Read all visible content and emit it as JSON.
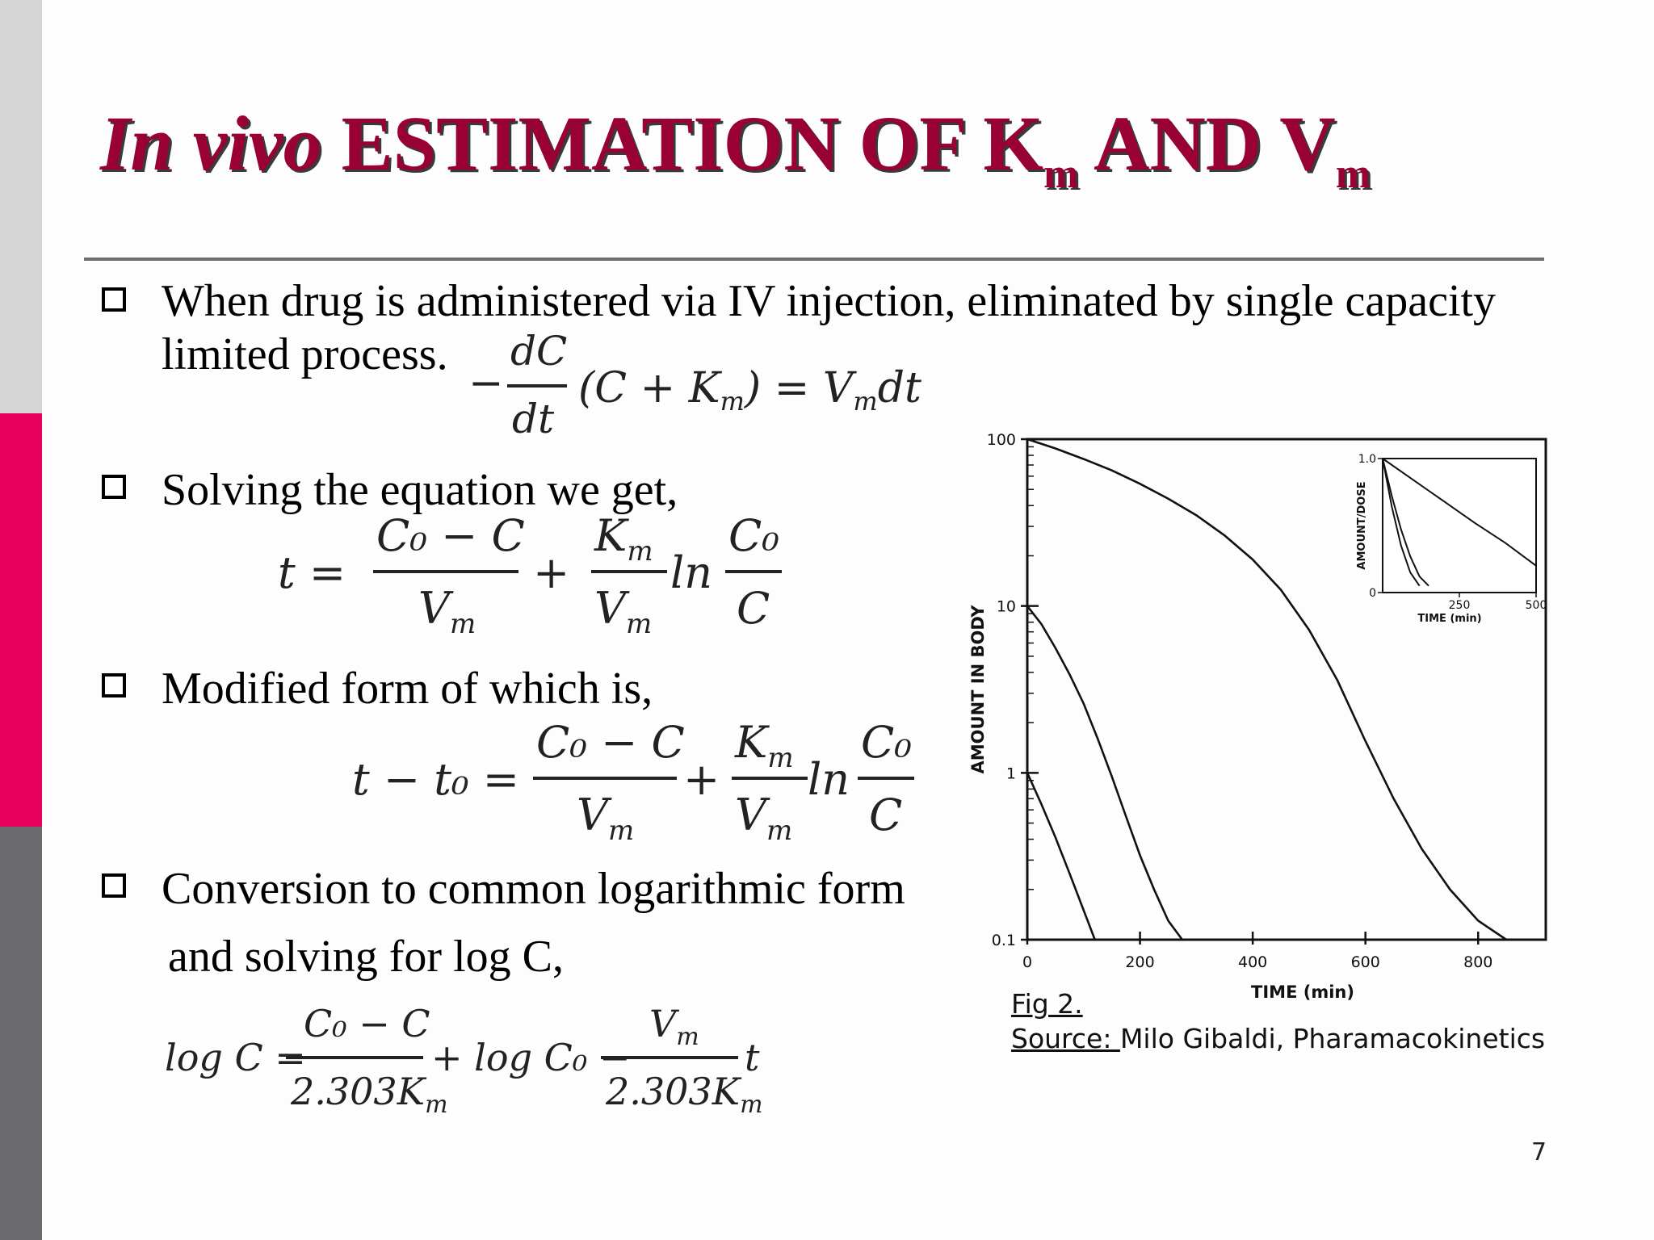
{
  "slide": {
    "title": {
      "italic": "In vivo",
      "main": " ESTIMATION OF K",
      "sub1": "m",
      "mid": " AND V",
      "sub2": "m"
    },
    "bullets": [
      {
        "line1": "When drug is administered via IV injection, eliminated by single capacity",
        "line2": "limited process."
      },
      {
        "line1": "Solving the equation we get,"
      },
      {
        "line1": "Modified form of which is,"
      },
      {
        "line1": "Conversion to common logarithmic form",
        "line2": "and solving for log C,"
      }
    ],
    "page_number": "7",
    "colors": {
      "title": "#990033",
      "sidebar_top": "#d6d6d6",
      "sidebar_mid": "#e6005c",
      "sidebar_bottom": "#6b6a6d"
    }
  },
  "equations": {
    "eq1": {
      "minus": "−",
      "num": "dC",
      "den": "dt",
      "rhs": "(C + K",
      "rhs_sub": "m",
      "rhs2": ") = V",
      "rhs_sub2": "m",
      "rhs3": "dt"
    },
    "eq2": {
      "lhs": "t =",
      "f1_num": "C₀ − C",
      "f1_den": "V",
      "f1_den_sub": "m",
      "plus": "+",
      "f2_num": "K",
      "f2_num_sub": "m",
      "f2_den": "V",
      "f2_den_sub": "m",
      "ln": "ln",
      "f3_num": "C₀",
      "f3_den": "C"
    },
    "eq3": {
      "lhs": "t − t₀ =",
      "f1_num": "C₀ − C",
      "f1_den": "V",
      "f1_den_sub": "m",
      "plus": "+",
      "f2_num": "K",
      "f2_num_sub": "m",
      "f2_den": "V",
      "f2_den_sub": "m",
      "ln": "ln",
      "f3_num": "C₀",
      "f3_den": "C"
    },
    "eq4": {
      "lhs": "log C =",
      "f1_num": "C₀ − C",
      "f1_den": "2.303K",
      "f1_den_sub": "m",
      "mid": "+ log C₀ −",
      "f2_num": "V",
      "f2_num_sub": "m",
      "f2_den": "2.303K",
      "f2_den_sub": "m",
      "tail": "t"
    }
  },
  "figure": {
    "caption_label": "Fig 2.",
    "source_label": "Source: ",
    "source_text": "Milo Gibaldi, Pharamacokinetics"
  },
  "chart_data": [
    {
      "type": "line",
      "xlabel": "TIME (min)",
      "ylabel": "AMOUNT IN BODY",
      "y_scale": "log",
      "xlim": [
        0,
        920
      ],
      "ylim": [
        0.1,
        100
      ],
      "x_ticks": [
        0,
        200,
        400,
        600,
        800
      ],
      "y_ticks": [
        0.1,
        1,
        10,
        100
      ],
      "x_tick_labels": [
        "0",
        "200",
        "400",
        "600",
        "800"
      ],
      "y_tick_labels": [
        "0.1",
        "1",
        "10",
        "100"
      ],
      "series": [
        {
          "x": [
            0,
            50,
            100,
            150,
            200,
            250,
            300,
            350,
            400,
            450,
            500,
            550,
            600,
            650,
            700,
            750,
            800,
            850
          ],
          "y": [
            100,
            88,
            76,
            65,
            54,
            44,
            35,
            26.5,
            19,
            12.5,
            7.2,
            3.6,
            1.55,
            0.7,
            0.35,
            0.2,
            0.13,
            0.1
          ]
        },
        {
          "x": [
            0,
            25,
            50,
            75,
            100,
            125,
            150,
            175,
            200,
            225,
            250,
            275
          ],
          "y": [
            10,
            7.8,
            5.6,
            3.9,
            2.6,
            1.6,
            0.95,
            0.55,
            0.32,
            0.2,
            0.13,
            0.1
          ]
        },
        {
          "x": [
            0,
            25,
            50,
            75,
            100,
            120
          ],
          "y": [
            1,
            0.65,
            0.41,
            0.25,
            0.15,
            0.1
          ]
        }
      ]
    },
    {
      "type": "line",
      "xlabel": "TIME (min)",
      "ylabel": "AMOUNT/DOSE",
      "xlim": [
        0,
        500
      ],
      "ylim": [
        0,
        1
      ],
      "x_ticks": [
        250,
        500
      ],
      "y_ticks": [
        0,
        1
      ],
      "x_tick_labels": [
        "250",
        "500"
      ],
      "y_tick_labels": [
        "0",
        "1.0"
      ],
      "series": [
        {
          "x": [
            0,
            100,
            200,
            300,
            400,
            500
          ],
          "y": [
            1.0,
            0.84,
            0.68,
            0.52,
            0.37,
            0.2
          ]
        },
        {
          "x": [
            0,
            30,
            60,
            90,
            120,
            150
          ],
          "y": [
            1.0,
            0.72,
            0.47,
            0.27,
            0.12,
            0.05
          ]
        },
        {
          "x": [
            0,
            30,
            60,
            90,
            120
          ],
          "y": [
            1.0,
            0.64,
            0.35,
            0.15,
            0.05
          ]
        }
      ]
    }
  ]
}
